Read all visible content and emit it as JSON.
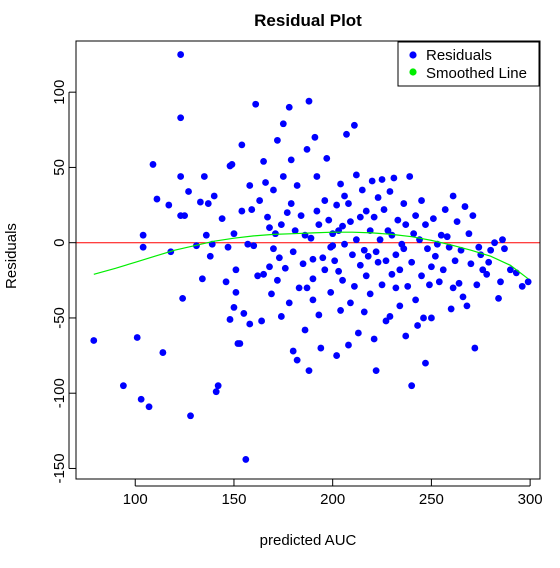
{
  "chart_data": {
    "type": "scatter",
    "title": "Residual Plot",
    "xlabel": "predicted AUC",
    "ylabel": "Residuals",
    "xlim": [
      70,
      305
    ],
    "ylim": [
      -157,
      134
    ],
    "xticks": [
      100,
      150,
      200,
      250,
      300
    ],
    "yticks": [
      -150,
      -100,
      -50,
      0,
      50,
      100
    ],
    "grid": false,
    "legend_position": "top-right",
    "legend": [
      {
        "label": "Residuals",
        "color": "#0000ff"
      },
      {
        "label": "Smoothed Line",
        "color": "#00ee00"
      }
    ],
    "reference_line": {
      "y": 0,
      "color": "#ff0000"
    },
    "series": [
      {
        "name": "Residuals",
        "color": "#0000ff",
        "points": [
          [
            79,
            -65
          ],
          [
            94,
            -95
          ],
          [
            101,
            -63
          ],
          [
            103,
            -104
          ],
          [
            104,
            -3
          ],
          [
            104,
            5
          ],
          [
            107,
            -109
          ],
          [
            109,
            52
          ],
          [
            111,
            29
          ],
          [
            114,
            -73
          ],
          [
            117,
            25
          ],
          [
            118,
            -6
          ],
          [
            123,
            125
          ],
          [
            123,
            83
          ],
          [
            123,
            44
          ],
          [
            123,
            18
          ],
          [
            124,
            -37
          ],
          [
            125,
            18
          ],
          [
            127,
            34
          ],
          [
            128,
            -115
          ],
          [
            131,
            -2
          ],
          [
            133,
            27
          ],
          [
            134,
            -24
          ],
          [
            135,
            44
          ],
          [
            136,
            5
          ],
          [
            137,
            26
          ],
          [
            138,
            -9
          ],
          [
            139,
            -1
          ],
          [
            140,
            31
          ],
          [
            141,
            -99
          ],
          [
            142,
            -95
          ],
          [
            144,
            16
          ],
          [
            146,
            -26
          ],
          [
            147,
            -3
          ],
          [
            148,
            -51
          ],
          [
            148,
            51
          ],
          [
            149,
            52
          ],
          [
            150,
            6
          ],
          [
            150,
            -43
          ],
          [
            151,
            -18
          ],
          [
            151,
            -33
          ],
          [
            152,
            -67
          ],
          [
            153,
            -67
          ],
          [
            154,
            65
          ],
          [
            154,
            21
          ],
          [
            155,
            -47
          ],
          [
            156,
            -144
          ],
          [
            157,
            -1
          ],
          [
            158,
            -54
          ],
          [
            158,
            38
          ],
          [
            159,
            22
          ],
          [
            160,
            -2
          ],
          [
            161,
            92
          ],
          [
            162,
            -22
          ],
          [
            163,
            28
          ],
          [
            164,
            -52
          ],
          [
            165,
            -21
          ],
          [
            165,
            54
          ],
          [
            166,
            40
          ],
          [
            167,
            17
          ],
          [
            168,
            -16
          ],
          [
            168,
            10
          ],
          [
            169,
            -34
          ],
          [
            170,
            -4
          ],
          [
            170,
            35
          ],
          [
            171,
            6
          ],
          [
            172,
            -25
          ],
          [
            172,
            68
          ],
          [
            173,
            -10
          ],
          [
            174,
            -49
          ],
          [
            174,
            12
          ],
          [
            175,
            79
          ],
          [
            175,
            44
          ],
          [
            176,
            -17
          ],
          [
            177,
            20
          ],
          [
            178,
            90
          ],
          [
            178,
            -40
          ],
          [
            179,
            55
          ],
          [
            179,
            26
          ],
          [
            180,
            -72
          ],
          [
            180,
            -6
          ],
          [
            181,
            8
          ],
          [
            182,
            -78
          ],
          [
            182,
            38
          ],
          [
            183,
            -30
          ],
          [
            184,
            18
          ],
          [
            185,
            -14
          ],
          [
            186,
            5
          ],
          [
            186,
            -58
          ],
          [
            187,
            62
          ],
          [
            187,
            -30
          ],
          [
            188,
            -85
          ],
          [
            188,
            94
          ],
          [
            189,
            3
          ],
          [
            190,
            -38
          ],
          [
            190,
            -11
          ],
          [
            190,
            -24
          ],
          [
            191,
            70
          ],
          [
            192,
            44
          ],
          [
            192,
            21
          ],
          [
            193,
            -48
          ],
          [
            193,
            12
          ],
          [
            194,
            -70
          ],
          [
            195,
            -10
          ],
          [
            196,
            28
          ],
          [
            196,
            -18
          ],
          [
            197,
            56
          ],
          [
            198,
            15
          ],
          [
            199,
            -3
          ],
          [
            199,
            -33
          ],
          [
            200,
            -2
          ],
          [
            200,
            6
          ],
          [
            201,
            -12
          ],
          [
            202,
            -75
          ],
          [
            202,
            25
          ],
          [
            203,
            8
          ],
          [
            203,
            -19
          ],
          [
            204,
            39
          ],
          [
            204,
            -45
          ],
          [
            205,
            11
          ],
          [
            205,
            -25
          ],
          [
            206,
            31
          ],
          [
            206,
            -1
          ],
          [
            207,
            72
          ],
          [
            208,
            -68
          ],
          [
            208,
            26
          ],
          [
            209,
            -40
          ],
          [
            209,
            14
          ],
          [
            210,
            -8
          ],
          [
            211,
            78
          ],
          [
            211,
            -29
          ],
          [
            212,
            45
          ],
          [
            212,
            2
          ],
          [
            213,
            -60
          ],
          [
            214,
            17
          ],
          [
            214,
            -15
          ],
          [
            215,
            35
          ],
          [
            216,
            -5
          ],
          [
            216,
            -46
          ],
          [
            217,
            21
          ],
          [
            217,
            -22
          ],
          [
            218,
            -9
          ],
          [
            219,
            8
          ],
          [
            219,
            -34
          ],
          [
            220,
            41
          ],
          [
            221,
            -64
          ],
          [
            221,
            17
          ],
          [
            222,
            -85
          ],
          [
            222,
            -6
          ],
          [
            223,
            30
          ],
          [
            223,
            -13
          ],
          [
            224,
            2
          ],
          [
            225,
            42
          ],
          [
            225,
            -28
          ],
          [
            226,
            22
          ],
          [
            227,
            -52
          ],
          [
            227,
            -12
          ],
          [
            228,
            8
          ],
          [
            229,
            34
          ],
          [
            229,
            -49
          ],
          [
            230,
            -21
          ],
          [
            230,
            5
          ],
          [
            231,
            43
          ],
          [
            232,
            -8
          ],
          [
            232,
            -30
          ],
          [
            233,
            15
          ],
          [
            234,
            -18
          ],
          [
            234,
            -42
          ],
          [
            235,
            -1
          ],
          [
            236,
            26
          ],
          [
            236,
            -4
          ],
          [
            237,
            12
          ],
          [
            237,
            -62
          ],
          [
            238,
            -29
          ],
          [
            239,
            44
          ],
          [
            240,
            -95
          ],
          [
            240,
            -13
          ],
          [
            241,
            6
          ],
          [
            242,
            18
          ],
          [
            242,
            -38
          ],
          [
            243,
            -55
          ],
          [
            244,
            2
          ],
          [
            245,
            28
          ],
          [
            245,
            -22
          ],
          [
            246,
            -50
          ],
          [
            247,
            -80
          ],
          [
            247,
            12
          ],
          [
            248,
            -4
          ],
          [
            249,
            -28
          ],
          [
            250,
            -16
          ],
          [
            250,
            -50
          ],
          [
            251,
            16
          ],
          [
            252,
            -9
          ],
          [
            253,
            -1
          ],
          [
            254,
            -26
          ],
          [
            255,
            5
          ],
          [
            256,
            -18
          ],
          [
            257,
            22
          ],
          [
            258,
            4
          ],
          [
            259,
            -3
          ],
          [
            260,
            -44
          ],
          [
            261,
            31
          ],
          [
            261,
            -30
          ],
          [
            262,
            -12
          ],
          [
            263,
            14
          ],
          [
            264,
            -27
          ],
          [
            265,
            -5
          ],
          [
            266,
            -36
          ],
          [
            267,
            24
          ],
          [
            268,
            -42
          ],
          [
            269,
            6
          ],
          [
            270,
            -14
          ],
          [
            271,
            18
          ],
          [
            272,
            -70
          ],
          [
            273,
            -28
          ],
          [
            274,
            -3
          ],
          [
            275,
            -8
          ],
          [
            276,
            -18
          ],
          [
            278,
            -21
          ],
          [
            279,
            -13
          ],
          [
            280,
            -5
          ],
          [
            282,
            0
          ],
          [
            284,
            -37
          ],
          [
            285,
            -26
          ],
          [
            286,
            2
          ],
          [
            287,
            -4
          ],
          [
            290,
            -18
          ],
          [
            293,
            -20
          ],
          [
            296,
            -29
          ],
          [
            299,
            -26
          ]
        ]
      },
      {
        "name": "Smoothed Line",
        "color": "#00ee00",
        "points": [
          [
            79,
            -21
          ],
          [
            90,
            -17
          ],
          [
            100,
            -13
          ],
          [
            110,
            -9
          ],
          [
            120,
            -5
          ],
          [
            130,
            -2
          ],
          [
            140,
            1
          ],
          [
            150,
            3
          ],
          [
            160,
            4.5
          ],
          [
            170,
            5.5
          ],
          [
            180,
            6
          ],
          [
            190,
            6.5
          ],
          [
            200,
            7
          ],
          [
            210,
            7
          ],
          [
            220,
            6.5
          ],
          [
            230,
            5.5
          ],
          [
            240,
            4
          ],
          [
            250,
            1.5
          ],
          [
            260,
            -1.5
          ],
          [
            270,
            -5
          ],
          [
            280,
            -9
          ],
          [
            290,
            -15
          ],
          [
            299,
            -24
          ]
        ]
      }
    ]
  }
}
